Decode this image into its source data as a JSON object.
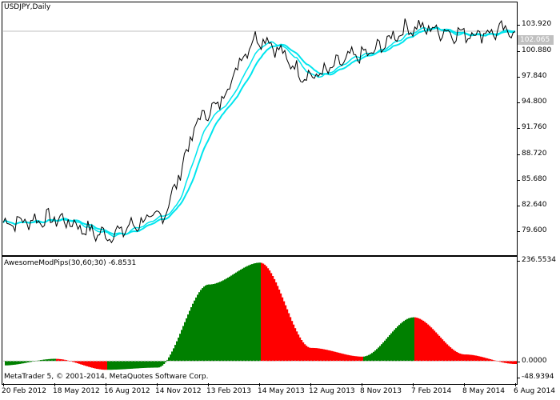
{
  "main_chart": {
    "title": "USDJPY,Daily",
    "current_price": "102.065",
    "price_scale": [
      "103.920",
      "100.880",
      "97.840",
      "94.800",
      "91.760",
      "88.720",
      "85.680",
      "82.640",
      "79.600"
    ]
  },
  "indicator": {
    "title": "AwesomeModPips(30,60;30) -6.8531",
    "scale": [
      "236.5534",
      "0.0000",
      "-48.9394"
    ]
  },
  "footer": {
    "copyright": "MetaTrader 5, © 2001-2014, MetaQuotes Software Corp."
  },
  "date_axis": [
    "20 Feb 2012",
    "18 May 2012",
    "16 Aug 2012",
    "14 Nov 2012",
    "13 Feb 2013",
    "14 May 2013",
    "12 Aug 2013",
    "8 Nov 2013",
    "7 Feb 2014",
    "8 May 2014",
    "6 Aug 2014"
  ],
  "colors": {
    "price_line": "#000000",
    "moving_average": "#00e5ee",
    "bull_histogram": "#008000",
    "bear_histogram": "#ff0000",
    "current_price_line": "#c0c0c0"
  },
  "chart_data": [
    {
      "type": "line",
      "title": "USDJPY,Daily",
      "x": [
        "20 Feb 2012",
        "18 May 2012",
        "16 Aug 2012",
        "14 Nov 2012",
        "13 Feb 2013",
        "14 May 2013",
        "12 Aug 2013",
        "8 Nov 2013",
        "7 Feb 2014",
        "8 May 2014",
        "6 Aug 2014"
      ],
      "series": [
        {
          "values": [
            80.0,
            80.4,
            78.6,
            80.5,
            92.8,
            101.3,
            96.9,
            99.3,
            102.5,
            101.8,
            102.1
          ]
        }
      ],
      "ylim": [
        76.5,
        105.3
      ]
    },
    {
      "type": "bar",
      "title": "AwesomeModPips(30,60;30) -6.8531",
      "x": [
        "20 Feb 2012",
        "18 May 2012",
        "16 Aug 2012",
        "14 Nov 2012",
        "13 Feb 2013",
        "14 May 2013",
        "12 Aug 2013",
        "8 Nov 2013",
        "7 Feb 2014",
        "8 May 2014",
        "6 Aug 2014"
      ],
      "series": [
        {
          "values": [
            -10,
            5,
            -20,
            -15,
            175,
            225,
            30,
            10,
            100,
            15,
            -6.85
          ]
        }
      ],
      "ylim": [
        -48.9394,
        236.5534
      ]
    }
  ]
}
